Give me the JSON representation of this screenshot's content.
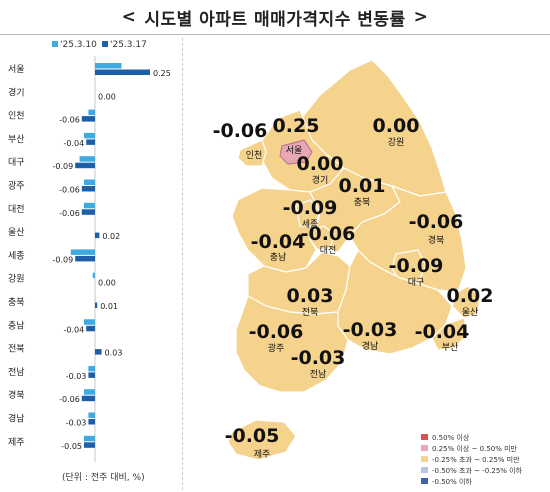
{
  "title": "시도별 아파트 매매가격지수 변동률",
  "title_arrows": {
    "left": "<",
    "right": ">"
  },
  "unit_note": "(단위 : 전주 대비, %)",
  "colors": {
    "series_prev": "#3fa9e0",
    "series_curr": "#1f5fa8",
    "region_fill": "#f5d38c",
    "region_stroke": "#ffffff",
    "seoul_fill": "#e7a7b5"
  },
  "chart_data": {
    "type": "bar",
    "orientation": "horizontal",
    "categories": [
      "서울",
      "경기",
      "인천",
      "부산",
      "대구",
      "광주",
      "대전",
      "울산",
      "세종",
      "강원",
      "충북",
      "충남",
      "전북",
      "전남",
      "경북",
      "경남",
      "제주"
    ],
    "series": [
      {
        "name": "'25.3.10",
        "values": [
          0.12,
          0.0,
          -0.03,
          -0.05,
          -0.07,
          -0.05,
          -0.05,
          0.0,
          -0.11,
          -0.01,
          0.0,
          -0.05,
          0.0,
          -0.03,
          -0.05,
          -0.03,
          -0.05
        ]
      },
      {
        "name": "'25.3.17",
        "values": [
          0.25,
          0.0,
          -0.06,
          -0.04,
          -0.09,
          -0.06,
          -0.06,
          0.02,
          -0.09,
          0.0,
          0.01,
          -0.04,
          0.03,
          -0.03,
          -0.06,
          -0.03,
          -0.05
        ]
      }
    ],
    "value_labels": [
      "0.25",
      "0.00",
      "-0.06",
      "-0.04",
      "-0.09",
      "-0.06",
      "-0.06",
      "0.02",
      "-0.09",
      "0.00",
      "0.01",
      "-0.04",
      "0.03",
      "-0.03",
      "-0.06",
      "-0.03",
      "-0.05"
    ],
    "xlim": [
      -0.15,
      0.3
    ],
    "legend": "top"
  },
  "map": {
    "regions": [
      {
        "key": "seoul",
        "name": "서울",
        "value": "0.25"
      },
      {
        "key": "incheon",
        "name": "인천",
        "value": "-0.06"
      },
      {
        "key": "gyeonggi",
        "name": "경기",
        "value": "0.00"
      },
      {
        "key": "gangwon",
        "name": "강원",
        "value": "0.00"
      },
      {
        "key": "chungbuk",
        "name": "충북",
        "value": "0.01"
      },
      {
        "key": "sejong",
        "name": "세종",
        "value": "-0.09"
      },
      {
        "key": "daejeon",
        "name": "대전",
        "value": "-0.06"
      },
      {
        "key": "chungnam",
        "name": "충남",
        "value": "-0.04"
      },
      {
        "key": "gyeongbuk",
        "name": "경북",
        "value": "-0.06"
      },
      {
        "key": "daegu",
        "name": "대구",
        "value": "-0.09"
      },
      {
        "key": "jeonbuk",
        "name": "전북",
        "value": "0.03"
      },
      {
        "key": "ulsan",
        "name": "울산",
        "value": "0.02"
      },
      {
        "key": "gwangju",
        "name": "광주",
        "value": "-0.06"
      },
      {
        "key": "gyeongnam",
        "name": "경남",
        "value": "-0.03"
      },
      {
        "key": "busan",
        "name": "부산",
        "value": "-0.04"
      },
      {
        "key": "jeonnam",
        "name": "전남",
        "value": "-0.03"
      },
      {
        "key": "jeju",
        "name": "제주",
        "value": "-0.05"
      }
    ],
    "legend": [
      {
        "label": "0.50% 이상",
        "color": "#d9534f"
      },
      {
        "label": "0.25% 이상 ~ 0.50% 미만",
        "color": "#e7a7b5"
      },
      {
        "label": "-0.25% 초과 ~ 0.25% 미만",
        "color": "#f5d38c"
      },
      {
        "label": "-0.50% 초과 ~ -0.25% 이하",
        "color": "#b8c4e0"
      },
      {
        "label": "-0.50% 이하",
        "color": "#3a64b0"
      }
    ]
  }
}
